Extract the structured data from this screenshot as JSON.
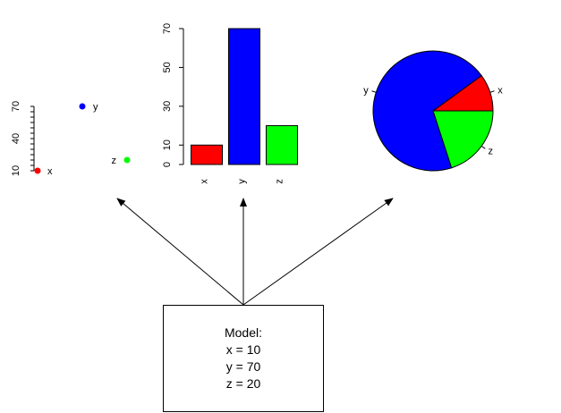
{
  "model": {
    "title": "Model:",
    "lines": [
      "x = 10",
      "y = 70",
      "z = 20"
    ]
  },
  "chart_data": [
    {
      "type": "scatter",
      "points": [
        {
          "label": "x",
          "value": 10,
          "color": "#ff0000"
        },
        {
          "label": "y",
          "value": 70,
          "color": "#0000ff"
        },
        {
          "label": "z",
          "value": 20,
          "color": "#00ff00"
        }
      ],
      "y_ticks": [
        10,
        40,
        70
      ],
      "ylim": [
        10,
        70
      ]
    },
    {
      "type": "bar",
      "categories": [
        "x",
        "y",
        "z"
      ],
      "values": [
        10,
        70,
        20
      ],
      "colors": [
        "#ff0000",
        "#0000ff",
        "#00ff00"
      ],
      "y_ticks": [
        0,
        10,
        30,
        50,
        70
      ],
      "ylim": [
        0,
        70
      ]
    },
    {
      "type": "pie",
      "slices": [
        {
          "label": "x",
          "value": 10,
          "color": "#ff0000"
        },
        {
          "label": "y",
          "value": 70,
          "color": "#0000ff"
        },
        {
          "label": "z",
          "value": 20,
          "color": "#00ff00"
        }
      ]
    }
  ]
}
